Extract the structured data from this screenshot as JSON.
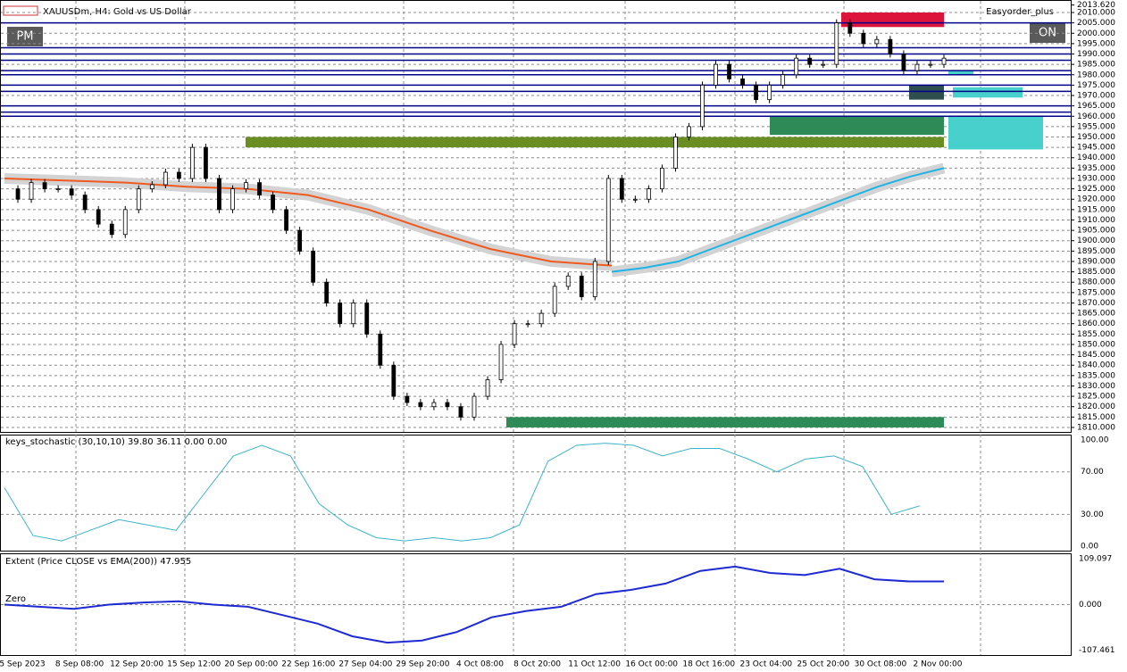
{
  "header": {
    "symbol": "XAUUSDm, H4:  Gold vs US Dollar",
    "pm_button": "PM",
    "on_button": "ON",
    "expert": "Easyorder_plus"
  },
  "price": {
    "ylim": [
      1807.4,
      2015.6
    ],
    "ticks": [
      {
        "value": 2013.62,
        "label": "2013.620"
      },
      {
        "value": 2010,
        "label": "2010.000"
      },
      {
        "value": 2005,
        "label": "2005.000"
      },
      {
        "value": 2000,
        "label": "2000.000"
      },
      {
        "value": 1995,
        "label": "1995.000"
      },
      {
        "value": 1990,
        "label": "1990.000"
      },
      {
        "value": 1985,
        "label": "1985.000"
      },
      {
        "value": 1980,
        "label": "1980.000"
      },
      {
        "value": 1975,
        "label": "1975.000"
      },
      {
        "value": 1970,
        "label": "1970.000"
      },
      {
        "value": 1965,
        "label": "1965.000"
      },
      {
        "value": 1960,
        "label": "1960.000"
      },
      {
        "value": 1955,
        "label": "1955.000"
      },
      {
        "value": 1950,
        "label": "1950.000"
      },
      {
        "value": 1945,
        "label": "1945.000"
      },
      {
        "value": 1940,
        "label": "1940.000"
      },
      {
        "value": 1935,
        "label": "1935.000"
      },
      {
        "value": 1930,
        "label": "1930.000"
      },
      {
        "value": 1925,
        "label": "1925.000"
      },
      {
        "value": 1920,
        "label": "1920.000"
      },
      {
        "value": 1915,
        "label": "1915.000"
      },
      {
        "value": 1910,
        "label": "1910.000"
      },
      {
        "value": 1905,
        "label": "1905.000"
      },
      {
        "value": 1900,
        "label": "1900.000"
      },
      {
        "value": 1895,
        "label": "1895.000"
      },
      {
        "value": 1890,
        "label": "1890.000"
      },
      {
        "value": 1885,
        "label": "1885.000"
      },
      {
        "value": 1880,
        "label": "1880.000"
      },
      {
        "value": 1875,
        "label": "1875.000"
      },
      {
        "value": 1870,
        "label": "1870.000"
      },
      {
        "value": 1865,
        "label": "1865.000"
      },
      {
        "value": 1860,
        "label": "1860.000"
      },
      {
        "value": 1855,
        "label": "1855.000"
      },
      {
        "value": 1850,
        "label": "1850.000"
      },
      {
        "value": 1845,
        "label": "1845.000"
      },
      {
        "value": 1840,
        "label": "1840.000"
      },
      {
        "value": 1835,
        "label": "1835.000"
      },
      {
        "value": 1830,
        "label": "1830.000"
      },
      {
        "value": 1825,
        "label": "1825.000"
      },
      {
        "value": 1820,
        "label": "1820.000"
      },
      {
        "value": 1815,
        "label": "1815.000"
      },
      {
        "value": 1810,
        "label": "1810.000"
      }
    ],
    "closes": [
      1925,
      1920,
      1928,
      1925,
      1925,
      1922,
      1915,
      1908,
      1903,
      1915,
      1925,
      1927,
      1933,
      1930,
      1945,
      1930,
      1915,
      1925,
      1928,
      1922,
      1915,
      1905,
      1895,
      1880,
      1870,
      1860,
      1870,
      1855,
      1840,
      1825,
      1822,
      1820,
      1822,
      1820,
      1815,
      1825,
      1833,
      1850,
      1860,
      1860,
      1865,
      1878,
      1883,
      1873,
      1890,
      1930,
      1920,
      1920,
      1925,
      1935,
      1950,
      1955,
      1975,
      1985,
      1978,
      1975,
      1968,
      1975,
      1980,
      1988,
      1985,
      1985,
      2005,
      2000,
      1995,
      1997,
      1990,
      1982,
      1985,
      1985,
      1988
    ],
    "ema_down": [
      1930,
      1929,
      1928,
      1926,
      1925,
      1922,
      1915,
      1905,
      1896,
      1890,
      1888
    ],
    "ema_up": [
      1885,
      1887,
      1890,
      1896,
      1902,
      1908,
      1914,
      1920,
      1926,
      1931,
      1935
    ],
    "levels": [
      2005,
      1993,
      1990,
      1987,
      1982,
      1980,
      1975,
      1972,
      1965,
      1962,
      1960
    ],
    "zones": [
      {
        "top": 2010,
        "bottom": 2003,
        "color": "#dc143c"
      },
      {
        "top": 1960,
        "bottom": 1951,
        "color": "#2e8b57"
      },
      {
        "top": 1950,
        "bottom": 1945,
        "color": "#6b8e23"
      },
      {
        "top": 1815,
        "bottom": 1810,
        "color": "#2e8b57"
      },
      {
        "top": 1975,
        "bottom": 1968,
        "color": "#2f4f4f"
      },
      {
        "top": 1974,
        "bottom": 1969,
        "color": "#48d1cc"
      },
      {
        "top": 1960,
        "bottom": 1944,
        "color": "#48d1cc"
      },
      {
        "top": 1982,
        "bottom": 1980,
        "color": "#48d1cc"
      }
    ]
  },
  "stochastic": {
    "label": "keys_stochastic (30,10,10) 39.80 36.11 0.00 0.00",
    "ylim": [
      -5,
      104.2
    ],
    "ticks": [
      {
        "value": 100,
        "label": "100.00"
      },
      {
        "value": 70,
        "label": "70.00"
      },
      {
        "value": 30,
        "label": "30.00"
      },
      {
        "value": 0,
        "label": "0.00"
      }
    ],
    "values": [
      55,
      10,
      5,
      15,
      25,
      20,
      15,
      50,
      85,
      95,
      85,
      40,
      20,
      8,
      5,
      8,
      5,
      8,
      20,
      80,
      95,
      97,
      95,
      85,
      92,
      92,
      82,
      70,
      82,
      85,
      75,
      30,
      38
    ]
  },
  "extent": {
    "label": "Extent (Price CLOSE vs EMA(200)) 47.955",
    "zero_label": "Zero",
    "ylim": [
      -121.6,
      119.5
    ],
    "ticks": [
      {
        "value": 109.097,
        "label": "109.097"
      },
      {
        "value": 0,
        "label": "0.000"
      },
      {
        "value": -107.461,
        "label": "-107.461"
      }
    ],
    "values": [
      0,
      -5,
      -10,
      0,
      5,
      8,
      0,
      -5,
      -25,
      -45,
      -75,
      -90,
      -85,
      -65,
      -30,
      -15,
      -5,
      25,
      35,
      50,
      80,
      90,
      75,
      70,
      85,
      60,
      55,
      55
    ]
  },
  "time_labels": [
    "5 Sep 2023",
    "8 Sep 08:00",
    "12 Sep 20:00",
    "15 Sep 12:00",
    "20 Sep 00:00",
    "22 Sep 16:00",
    "27 Sep 04:00",
    "29 Sep 20:00",
    "4 Oct 08:00",
    "8 Oct 20:00",
    "11 Oct 12:00",
    "16 Oct 00:00",
    "18 Oct 16:00",
    "23 Oct 04:00",
    "25 Oct 20:00",
    "30 Oct 08:00",
    "2 Nov 00:00"
  ]
}
